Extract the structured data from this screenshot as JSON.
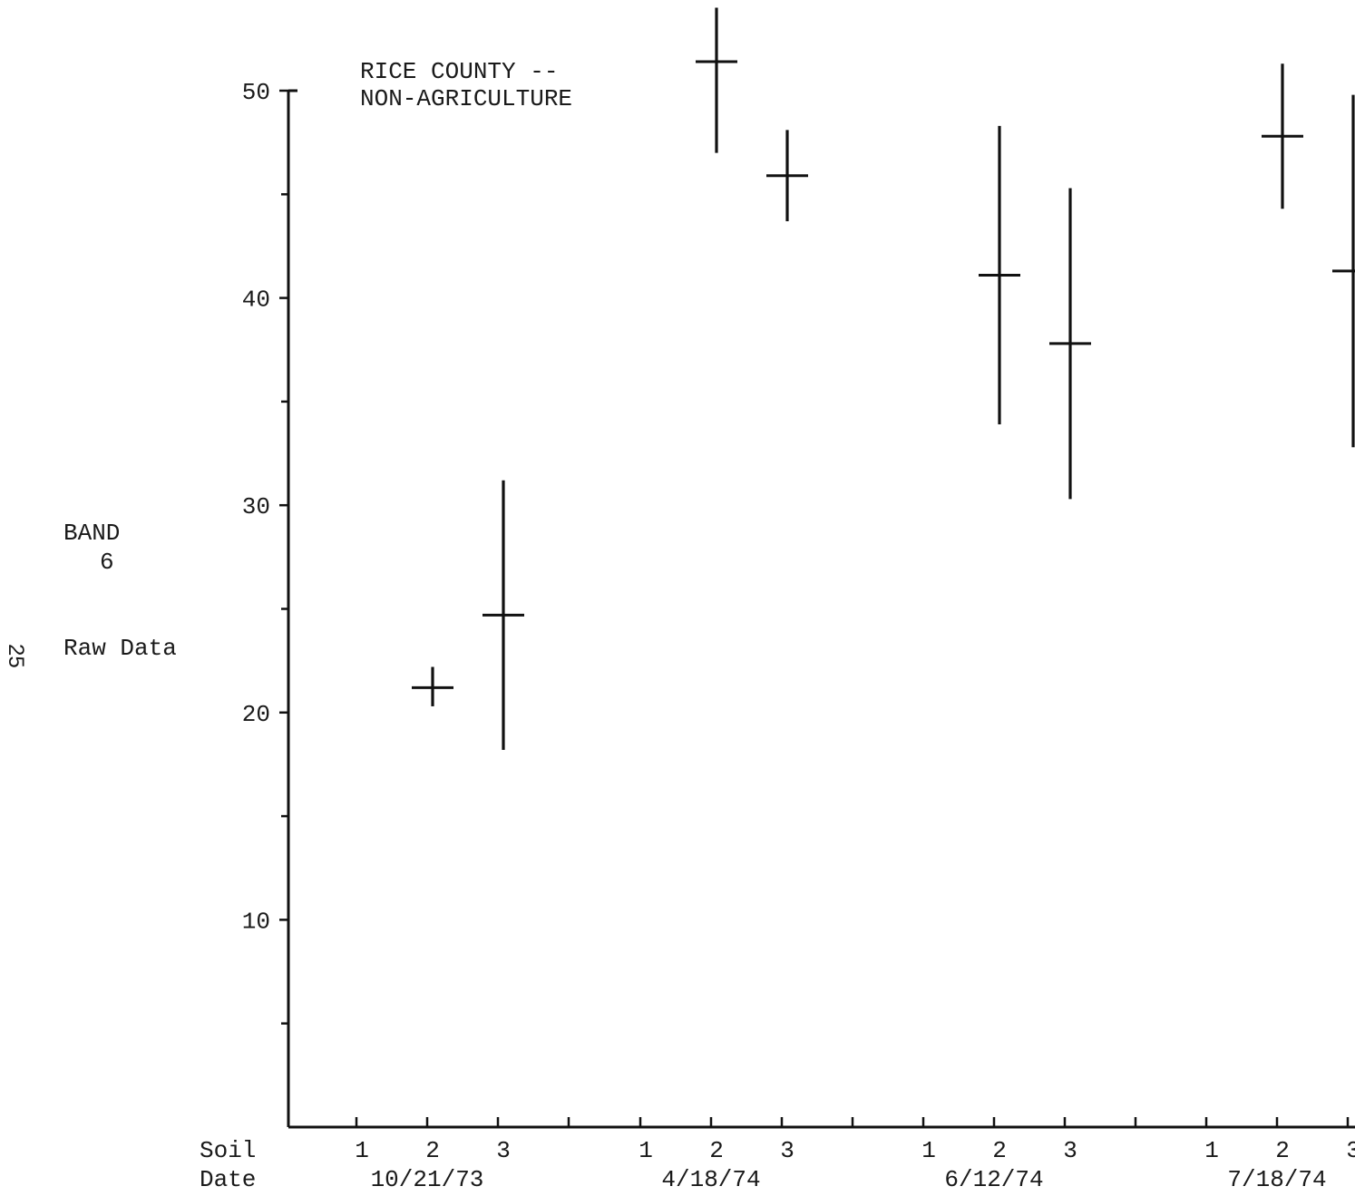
{
  "page_number": "25",
  "side_label": {
    "band": "BAND",
    "band_num": "6",
    "units": "Raw Data"
  },
  "chart_data": {
    "type": "scatter",
    "title_line1": "RICE COUNTY --",
    "title_line2": "NON-AGRICULTURE",
    "x_row_label_soil": "Soil",
    "x_row_label_date": "Date",
    "ylim": [
      0,
      50
    ],
    "y_ticks": [
      10,
      20,
      30,
      40,
      50
    ],
    "y_minor_ticks": [
      5,
      15,
      25,
      35,
      45
    ],
    "dates": [
      "10/21/73",
      "4/18/74",
      "6/12/74",
      "7/18/74"
    ],
    "soils": [
      "1",
      "2",
      "3"
    ],
    "points": [
      {
        "date": "10/21/73",
        "soil": "2",
        "mean": 21.2,
        "low": 20.3,
        "high": 22.2
      },
      {
        "date": "10/21/73",
        "soil": "3",
        "mean": 24.7,
        "low": 18.2,
        "high": 31.2
      },
      {
        "date": "4/18/74",
        "soil": "2",
        "mean": 51.4,
        "low": 47.0,
        "high": 54.0
      },
      {
        "date": "4/18/74",
        "soil": "3",
        "mean": 45.9,
        "low": 43.7,
        "high": 48.1
      },
      {
        "date": "6/12/74",
        "soil": "2",
        "mean": 41.1,
        "low": 33.9,
        "high": 48.3
      },
      {
        "date": "6/12/74",
        "soil": "3",
        "mean": 37.8,
        "low": 30.3,
        "high": 45.3
      },
      {
        "date": "7/18/74",
        "soil": "2",
        "mean": 47.8,
        "low": 44.3,
        "high": 51.3
      },
      {
        "date": "7/18/74",
        "soil": "3",
        "mean": 41.3,
        "low": 32.8,
        "high": 49.8
      }
    ]
  }
}
